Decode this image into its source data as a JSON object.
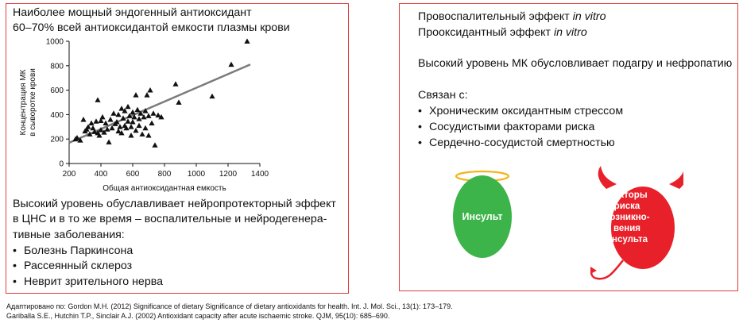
{
  "left_panel": {
    "title_line1": "Наиболее мощный эндогенный антиоксидант",
    "title_line2": "60–70% всей антиоксидантой емкости плазмы крови",
    "text_line1": "Высокий уровень обуславливает нейропротекторный эффект",
    "text_line2": "в ЦНС и в то же время – воспалительные и нейродегенера-",
    "text_line3": "тивные заболевания:",
    "bullets": [
      "Болезнь Паркинсона",
      "Рассеянный склероз",
      "Неврит зрительного нерва"
    ]
  },
  "right_panel": {
    "line1_text": "Провоспалительный эффект ",
    "line1_italic": "in vitro",
    "line2_text": "Прооксидантный эффект ",
    "line2_italic": "in vitro",
    "line3": "Высокий уровень МК обусловливает подагру и нефропатию",
    "associated": "Связан с:",
    "bullets": [
      "Хроническим оксидантным стрессом",
      "Сосудистыми факторами риска",
      "Сердечно-сосудистой смертностью"
    ],
    "bullet_symbol": "•"
  },
  "diagram": {
    "good_label": "Инсульт",
    "bad_label_lines": [
      "Факторы",
      "риска",
      "возникно-",
      "вения",
      "инсульта"
    ],
    "good_color": "#3cb449",
    "bad_color": "#e8202a",
    "halo_color": "#f2b418"
  },
  "references": {
    "ref1": "Адаптировано по: Gordon M.H. (2012) Significance of dietary Significance of dietary antioxidants for health. Int. J. Mol. Sci., 13(1): 173–179.",
    "ref2": "Gariballa S.E., Hutchin T.P., Sinclair A.J. (2002) Antioxidant capacity after acute ischaemic stroke. QJM, 95(10): 685–690."
  },
  "chart_data": {
    "type": "scatter",
    "xlabel": "Общая антиоксидантная емкость",
    "ylabel_lines": [
      "Концентрация МК",
      "в сыворотке крови"
    ],
    "xlim": [
      200,
      1400
    ],
    "ylim": [
      0,
      1000
    ],
    "xticks": [
      200,
      400,
      600,
      800,
      1000,
      1200,
      1400
    ],
    "yticks": [
      0,
      200,
      400,
      600,
      800,
      1000
    ],
    "marker": "triangle",
    "trendline": [
      [
        200,
        170
      ],
      [
        1340,
        810
      ]
    ],
    "points": [
      [
        240,
        200
      ],
      [
        250,
        210
      ],
      [
        270,
        190
      ],
      [
        290,
        360
      ],
      [
        300,
        265
      ],
      [
        310,
        280
      ],
      [
        320,
        300
      ],
      [
        330,
        240
      ],
      [
        340,
        330
      ],
      [
        350,
        290
      ],
      [
        360,
        260
      ],
      [
        370,
        345
      ],
      [
        380,
        520
      ],
      [
        380,
        250
      ],
      [
        390,
        230
      ],
      [
        400,
        275
      ],
      [
        400,
        350
      ],
      [
        410,
        380
      ],
      [
        420,
        255
      ],
      [
        430,
        330
      ],
      [
        440,
        280
      ],
      [
        450,
        175
      ],
      [
        460,
        360
      ],
      [
        470,
        290
      ],
      [
        480,
        410
      ],
      [
        490,
        325
      ],
      [
        500,
        340
      ],
      [
        510,
        265
      ],
      [
        510,
        400
      ],
      [
        520,
        300
      ],
      [
        530,
        450
      ],
      [
        530,
        250
      ],
      [
        540,
        370
      ],
      [
        550,
        310
      ],
      [
        550,
        430
      ],
      [
        560,
        290
      ],
      [
        570,
        465
      ],
      [
        570,
        345
      ],
      [
        580,
        390
      ],
      [
        590,
        230
      ],
      [
        590,
        300
      ],
      [
        600,
        420
      ],
      [
        600,
        340
      ],
      [
        610,
        380
      ],
      [
        620,
        270
      ],
      [
        620,
        560
      ],
      [
        630,
        440
      ],
      [
        640,
        310
      ],
      [
        640,
        365
      ],
      [
        650,
        410
      ],
      [
        660,
        240
      ],
      [
        670,
        380
      ],
      [
        680,
        290
      ],
      [
        680,
        430
      ],
      [
        690,
        560
      ],
      [
        700,
        390
      ],
      [
        700,
        230
      ],
      [
        710,
        600
      ],
      [
        720,
        330
      ],
      [
        730,
        410
      ],
      [
        740,
        150
      ],
      [
        760,
        395
      ],
      [
        780,
        380
      ],
      [
        870,
        650
      ],
      [
        890,
        500
      ],
      [
        1100,
        550
      ],
      [
        1220,
        810
      ],
      [
        1320,
        1000
      ]
    ]
  }
}
